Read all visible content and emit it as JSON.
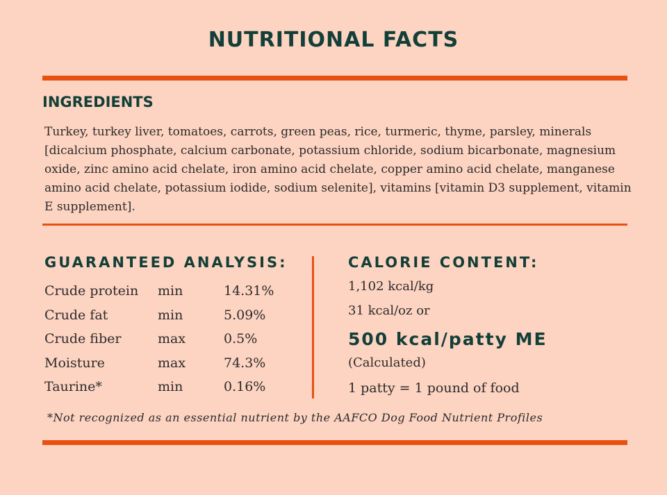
{
  "header": {
    "title": "NUTRITIONAL FACTS"
  },
  "ingredients": {
    "heading": "INGREDIENTS",
    "text": "Turkey, turkey liver, tomatoes, carrots, green peas, rice, turmeric, thyme, parsley, minerals [dicalcium phosphate, calcium carbonate, potassium chloride, sodium bicarbonate, magnesium oxide, zinc amino acid chelate, iron amino acid chelate, copper amino acid chelate, manganese amino acid chelate, potassium iodide, sodium selenite], vitamins [vitamin D3 supplement, vitamin E supplement]."
  },
  "analysis": {
    "heading": "GUARANTEED ANALYSIS:",
    "rows": [
      [
        "Crude protein",
        "min",
        "14.31%"
      ],
      [
        "Crude fat",
        "min",
        "5.09%"
      ],
      [
        "Crude fiber",
        "max",
        "0.5%"
      ],
      [
        "Moisture",
        "max",
        "74.3%"
      ],
      [
        "Taurine*",
        "min",
        "0.16%"
      ]
    ]
  },
  "calories": {
    "heading": "CALORIE CONTENT:",
    "lines": [
      "1,102 kcal/kg",
      "31 kcal/oz or"
    ],
    "highlight": "500 kcal/patty ME",
    "note": "(Calculated)",
    "patty": "1 patty = 1 pound of food"
  },
  "footnote": "*Not recognized as an essential nutrient by the AAFCO Dog Food Nutrient Profiles"
}
